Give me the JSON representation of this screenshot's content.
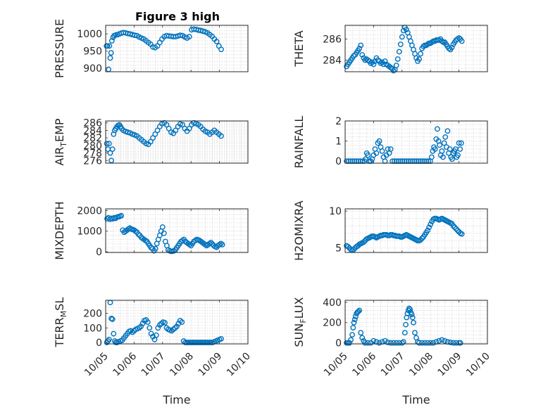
{
  "figure_title": "Figure 3 high",
  "marker_color": "#0072BD",
  "x_tick_labels": [
    "10/05",
    "10/06",
    "10/07",
    "10/08",
    "10/09",
    "10/10"
  ],
  "chart_data": [
    {
      "type": "scatter",
      "title": "Figure 3 high",
      "ylabel": "PRESSURE",
      "ylabel_sub": "",
      "xlabel": "",
      "xlim": [
        0,
        5
      ],
      "ylim": [
        890,
        1025
      ],
      "yticks": [
        900,
        950,
        1000
      ],
      "ytick_labels": [
        "900",
        "950",
        "1000"
      ],
      "grid": true,
      "x": [
        0.03,
        0.06,
        0.1,
        0.13,
        0.16,
        0.19,
        0.22,
        0.26,
        0.3,
        0.36,
        0.42,
        0.48,
        0.55,
        0.62,
        0.7,
        0.78,
        0.86,
        0.94,
        1.02,
        1.1,
        1.18,
        1.26,
        1.34,
        1.42,
        1.5,
        1.58,
        1.66,
        1.74,
        1.82,
        1.9,
        1.98,
        2.06,
        2.14,
        2.22,
        2.3,
        2.38,
        2.46,
        2.54,
        2.62,
        2.7,
        2.78,
        2.86,
        2.94,
        3.02,
        3.1,
        3.18,
        3.26,
        3.34,
        3.42,
        3.5,
        3.58,
        3.66,
        3.74,
        3.82,
        3.9,
        3.98,
        4.06
      ],
      "y": [
        965,
        965,
        897,
        965,
        930,
        945,
        980,
        990,
        995,
        997,
        998,
        1000,
        1002,
        1004,
        1003,
        1001,
        1000,
        998,
        996,
        995,
        991,
        988,
        985,
        980,
        975,
        970,
        962,
        960,
        965,
        975,
        985,
        992,
        995,
        994,
        993,
        992,
        992,
        994,
        996,
        995,
        991,
        988,
        992,
        1012,
        1014,
        1013,
        1011,
        1010,
        1008,
        1006,
        1003,
        998,
        993,
        985,
        978,
        965,
        955
      ]
    },
    {
      "type": "scatter",
      "title": "",
      "ylabel": "THETA",
      "ylabel_sub": "",
      "xlabel": "",
      "xlim": [
        0,
        5
      ],
      "ylim": [
        282.9,
        287.3
      ],
      "yticks": [
        284,
        286
      ],
      "ytick_labels": [
        "284",
        "286"
      ],
      "grid": true,
      "x": [
        0.05,
        0.1,
        0.15,
        0.2,
        0.25,
        0.3,
        0.35,
        0.4,
        0.45,
        0.5,
        0.55,
        0.6,
        0.65,
        0.7,
        0.75,
        0.8,
        0.85,
        0.9,
        0.95,
        1.0,
        1.05,
        1.1,
        1.15,
        1.2,
        1.25,
        1.3,
        1.35,
        1.4,
        1.45,
        1.5,
        1.55,
        1.6,
        1.65,
        1.7,
        1.75,
        1.8,
        1.85,
        1.9,
        1.95,
        2.0,
        2.05,
        2.1,
        2.15,
        2.2,
        2.25,
        2.3,
        2.35,
        2.4,
        2.45,
        2.5,
        2.55,
        2.6,
        2.65,
        2.7,
        2.75,
        2.8,
        2.85,
        2.9,
        2.95,
        3.0,
        3.05,
        3.1,
        3.15,
        3.2,
        3.25,
        3.3,
        3.35,
        3.4,
        3.45,
        3.5,
        3.55,
        3.6,
        3.65,
        3.7,
        3.75,
        3.8,
        3.85,
        3.9,
        3.95,
        4.0,
        4.05,
        4.1
      ],
      "y": [
        283.4,
        283.6,
        283.8,
        284.0,
        284.2,
        284.4,
        284.5,
        284.7,
        284.9,
        285.1,
        285.4,
        284.5,
        284.2,
        284.0,
        284.1,
        284.0,
        283.9,
        283.7,
        283.8,
        283.6,
        283.9,
        284.2,
        284.0,
        283.9,
        283.7,
        283.8,
        283.6,
        283.9,
        283.6,
        283.5,
        283.4,
        283.3,
        283.2,
        283.0,
        283.1,
        283.5,
        284.1,
        284.8,
        285.5,
        286.2,
        286.8,
        287.1,
        286.9,
        286.6,
        286.2,
        285.8,
        285.4,
        285.0,
        284.6,
        284.2,
        283.9,
        284.1,
        284.6,
        285.1,
        285.3,
        285.4,
        285.4,
        285.5,
        285.6,
        285.6,
        285.7,
        285.8,
        285.8,
        285.9,
        285.9,
        285.9,
        286.0,
        285.8,
        285.7,
        285.7,
        285.5,
        285.3,
        285.1,
        285.0,
        285.2,
        285.5,
        285.7,
        285.9,
        286.0,
        286.1,
        286.0,
        285.8
      ]
    },
    {
      "type": "scatter",
      "title": "",
      "ylabel": "AIR",
      "ylabel_sub": "T",
      "ylabel_post": "EMP",
      "xlabel": "",
      "xlim": [
        0,
        5
      ],
      "ylim": [
        275.3,
        286.5
      ],
      "yticks": [
        276,
        278,
        280,
        282,
        284,
        286
      ],
      "ytick_labels": [
        "276",
        "278",
        "280",
        "282",
        "284",
        "286"
      ],
      "grid": true,
      "x": [
        0.04,
        0.08,
        0.12,
        0.16,
        0.2,
        0.24,
        0.28,
        0.32,
        0.36,
        0.4,
        0.44,
        0.48,
        0.52,
        0.56,
        0.62,
        0.7,
        0.78,
        0.86,
        0.94,
        1.02,
        1.1,
        1.18,
        1.26,
        1.34,
        1.42,
        1.5,
        1.58,
        1.66,
        1.74,
        1.82,
        1.9,
        1.98,
        2.06,
        2.14,
        2.22,
        2.3,
        2.38,
        2.46,
        2.54,
        2.62,
        2.7,
        2.78,
        2.86,
        2.94,
        3.02,
        3.1,
        3.18,
        3.26,
        3.34,
        3.42,
        3.5,
        3.58,
        3.66,
        3.74,
        3.82,
        3.9,
        3.98,
        4.06
      ],
      "y": [
        280.5,
        279.0,
        280.5,
        278.0,
        276.0,
        279.0,
        283.0,
        284.0,
        284.5,
        285.0,
        285.3,
        285.5,
        285.0,
        284.5,
        284.0,
        283.7,
        283.5,
        283.3,
        283.0,
        282.8,
        282.5,
        282.0,
        281.5,
        281.0,
        280.5,
        280.3,
        281.0,
        282.0,
        283.0,
        284.0,
        285.0,
        285.8,
        286.0,
        285.5,
        284.5,
        283.5,
        283.2,
        284.0,
        285.0,
        285.7,
        285.5,
        284.5,
        283.8,
        284.5,
        285.5,
        286.0,
        285.8,
        285.5,
        285.0,
        284.3,
        283.8,
        283.5,
        283.0,
        283.5,
        284.0,
        283.5,
        283.0,
        282.5
      ]
    },
    {
      "type": "scatter",
      "title": "",
      "ylabel": "RAINFALL",
      "ylabel_sub": "",
      "xlabel": "",
      "xlim": [
        0,
        5
      ],
      "ylim": [
        -0.1,
        2
      ],
      "yticks": [
        0,
        1,
        2
      ],
      "ytick_labels": [
        "0",
        "1",
        "2"
      ],
      "grid": true,
      "x": [
        0.05,
        0.12,
        0.19,
        0.26,
        0.33,
        0.4,
        0.47,
        0.54,
        0.61,
        0.68,
        0.72,
        0.76,
        0.8,
        0.85,
        0.9,
        0.95,
        1.0,
        1.05,
        1.1,
        1.15,
        1.2,
        1.25,
        1.3,
        1.35,
        1.4,
        1.45,
        1.5,
        1.55,
        1.6,
        1.66,
        1.73,
        1.8,
        1.87,
        1.94,
        2.01,
        2.08,
        2.15,
        2.22,
        2.29,
        2.36,
        2.43,
        2.5,
        2.57,
        2.64,
        2.71,
        2.78,
        2.85,
        2.92,
        2.99,
        3.04,
        3.08,
        3.12,
        3.16,
        3.2,
        3.24,
        3.28,
        3.32,
        3.36,
        3.4,
        3.44,
        3.48,
        3.52,
        3.56,
        3.6,
        3.64,
        3.68,
        3.72,
        3.76,
        3.8,
        3.84,
        3.88,
        3.92,
        3.96,
        4.0,
        4.04,
        4.08
      ],
      "y": [
        0,
        0,
        0,
        0,
        0,
        0,
        0,
        0,
        0,
        0,
        0.1,
        0.4,
        0.3,
        0,
        0,
        0.1,
        0.3,
        0.6,
        0.4,
        0.9,
        1.0,
        0.7,
        0.5,
        0.2,
        0,
        0.3,
        0.6,
        0.4,
        0.6,
        0,
        0,
        0,
        0,
        0,
        0,
        0,
        0,
        0,
        0,
        0,
        0,
        0,
        0,
        0,
        0,
        0,
        0,
        0,
        0,
        0.2,
        0.5,
        0.7,
        0.6,
        1.1,
        1.6,
        1.0,
        0.8,
        0.3,
        0.5,
        0.2,
        0.9,
        1.2,
        0.7,
        1.5,
        0.4,
        0.6,
        0.2,
        0.1,
        0.4,
        0.5,
        0.6,
        0.2,
        0.3,
        0.9,
        0.6,
        0.9
      ]
    },
    {
      "type": "scatter",
      "title": "",
      "ylabel": "MIXDEPTH",
      "ylabel_sub": "",
      "xlabel": "",
      "xlim": [
        0,
        5
      ],
      "ylim": [
        -30,
        2080
      ],
      "yticks": [
        0,
        1000,
        2000
      ],
      "ytick_labels": [
        "0",
        "1000",
        "2000"
      ],
      "grid": true,
      "x": [
        0.05,
        0.1,
        0.15,
        0.2,
        0.25,
        0.3,
        0.35,
        0.4,
        0.45,
        0.5,
        0.55,
        0.6,
        0.65,
        0.7,
        0.75,
        0.8,
        0.85,
        0.9,
        0.95,
        1.0,
        1.05,
        1.1,
        1.15,
        1.2,
        1.25,
        1.3,
        1.35,
        1.4,
        1.45,
        1.5,
        1.55,
        1.6,
        1.65,
        1.7,
        1.75,
        1.8,
        1.85,
        1.9,
        1.95,
        2.0,
        2.05,
        2.1,
        2.15,
        2.2,
        2.25,
        2.3,
        2.35,
        2.4,
        2.45,
        2.5,
        2.55,
        2.6,
        2.65,
        2.7,
        2.75,
        2.8,
        2.85,
        2.9,
        2.95,
        3.0,
        3.05,
        3.1,
        3.15,
        3.2,
        3.25,
        3.3,
        3.35,
        3.4,
        3.45,
        3.5,
        3.55,
        3.6,
        3.65,
        3.7,
        3.75,
        3.8,
        3.85,
        3.9,
        3.95,
        4.0,
        4.05,
        4.1
      ],
      "y": [
        1600,
        1650,
        1580,
        1620,
        1600,
        1650,
        1620,
        1680,
        1700,
        1720,
        1750,
        1050,
        950,
        1000,
        1050,
        1100,
        1150,
        1100,
        1080,
        1050,
        1000,
        950,
        850,
        800,
        700,
        650,
        600,
        550,
        500,
        400,
        300,
        200,
        150,
        50,
        150,
        400,
        600,
        800,
        1000,
        1200,
        900,
        500,
        300,
        100,
        50,
        20,
        30,
        50,
        100,
        200,
        300,
        400,
        500,
        550,
        600,
        500,
        450,
        400,
        350,
        300,
        400,
        500,
        550,
        600,
        580,
        550,
        500,
        450,
        400,
        350,
        300,
        350,
        400,
        450,
        380,
        300,
        250,
        220,
        300,
        350,
        400,
        350
      ]
    },
    {
      "type": "scatter",
      "title": "",
      "ylabel": "H2OMIXRA",
      "ylabel_sub": "",
      "xlabel": "",
      "xlim": [
        0,
        5
      ],
      "ylim": [
        4.4,
        10.3
      ],
      "yticks": [
        5,
        10
      ],
      "ytick_labels": [
        "5",
        "10"
      ],
      "grid": true,
      "x": [
        0.05,
        0.1,
        0.15,
        0.2,
        0.25,
        0.3,
        0.35,
        0.4,
        0.45,
        0.5,
        0.55,
        0.6,
        0.65,
        0.7,
        0.75,
        0.8,
        0.85,
        0.9,
        0.95,
        1.0,
        1.05,
        1.1,
        1.15,
        1.2,
        1.25,
        1.3,
        1.35,
        1.4,
        1.45,
        1.5,
        1.55,
        1.6,
        1.65,
        1.7,
        1.75,
        1.8,
        1.85,
        1.9,
        1.95,
        2.0,
        2.05,
        2.1,
        2.15,
        2.2,
        2.25,
        2.3,
        2.35,
        2.4,
        2.45,
        2.5,
        2.55,
        2.6,
        2.65,
        2.7,
        2.75,
        2.8,
        2.85,
        2.9,
        2.95,
        3.0,
        3.05,
        3.1,
        3.15,
        3.2,
        3.25,
        3.3,
        3.35,
        3.4,
        3.45,
        3.5,
        3.55,
        3.6,
        3.65,
        3.7,
        3.75,
        3.8,
        3.85,
        3.9,
        3.95,
        4.0,
        4.05,
        4.1
      ],
      "y": [
        5.3,
        5.2,
        5.0,
        4.8,
        4.7,
        4.8,
        5.0,
        5.2,
        5.3,
        5.5,
        5.6,
        5.7,
        5.8,
        6.0,
        6.2,
        6.3,
        6.4,
        6.5,
        6.6,
        6.6,
        6.5,
        6.4,
        6.5,
        6.6,
        6.7,
        6.7,
        6.8,
        6.8,
        6.8,
        6.7,
        6.7,
        6.8,
        6.8,
        6.7,
        6.7,
        6.6,
        6.6,
        6.6,
        6.5,
        6.5,
        6.6,
        6.7,
        6.8,
        6.7,
        6.6,
        6.5,
        6.4,
        6.3,
        6.2,
        6.1,
        6.0,
        6.0,
        6.1,
        6.3,
        6.5,
        6.8,
        7.1,
        7.4,
        7.8,
        8.2,
        8.6,
        8.9,
        9.0,
        9.0,
        8.9,
        8.8,
        8.9,
        9.0,
        8.9,
        8.8,
        8.7,
        8.6,
        8.5,
        8.4,
        8.3,
        8.0,
        7.8,
        7.6,
        7.4,
        7.2,
        7.0,
        6.9
      ]
    },
    {
      "type": "scatter",
      "title": "",
      "ylabel": "TERR",
      "ylabel_sub": "M",
      "ylabel_post": "SL",
      "xlabel": "Time",
      "xlim": [
        0,
        5
      ],
      "ylim": [
        -10,
        290
      ],
      "yticks": [
        0,
        100,
        200
      ],
      "ytick_labels": [
        "0",
        "100",
        "200"
      ],
      "grid": true,
      "x": [
        0.04,
        0.08,
        0.12,
        0.16,
        0.2,
        0.24,
        0.28,
        0.32,
        0.36,
        0.4,
        0.46,
        0.52,
        0.58,
        0.64,
        0.7,
        0.76,
        0.82,
        0.88,
        0.94,
        1.0,
        1.06,
        1.12,
        1.18,
        1.24,
        1.3,
        1.36,
        1.42,
        1.48,
        1.54,
        1.6,
        1.66,
        1.72,
        1.78,
        1.84,
        1.9,
        1.96,
        2.02,
        2.08,
        2.14,
        2.2,
        2.26,
        2.32,
        2.38,
        2.44,
        2.5,
        2.56,
        2.62,
        2.68,
        2.74,
        2.8,
        2.86,
        2.92,
        2.98,
        3.04,
        3.1,
        3.16,
        3.22,
        3.28,
        3.34,
        3.4,
        3.46,
        3.52,
        3.58,
        3.64,
        3.7,
        3.76,
        3.82,
        3.88,
        3.94,
        4.0,
        4.06
      ],
      "y": [
        0,
        10,
        20,
        275,
        165,
        160,
        60,
        10,
        0,
        0,
        5,
        10,
        15,
        30,
        45,
        60,
        75,
        80,
        70,
        80,
        90,
        95,
        100,
        110,
        130,
        150,
        155,
        140,
        100,
        60,
        40,
        20,
        50,
        100,
        120,
        130,
        140,
        135,
        100,
        90,
        85,
        80,
        90,
        100,
        110,
        130,
        150,
        140,
        10,
        0,
        0,
        0,
        0,
        0,
        0,
        0,
        0,
        0,
        0,
        0,
        0,
        0,
        0,
        0,
        0,
        0,
        5,
        10,
        15,
        20,
        25
      ]
    },
    {
      "type": "scatter",
      "title": "",
      "ylabel": "SUN",
      "ylabel_sub": "F",
      "ylabel_post": "LUX",
      "xlabel": "Time",
      "xlim": [
        0,
        5
      ],
      "ylim": [
        -10,
        420
      ],
      "yticks": [
        0,
        200,
        400
      ],
      "ytick_labels": [
        "0",
        "200",
        "400"
      ],
      "grid": true,
      "x": [
        0.05,
        0.1,
        0.15,
        0.2,
        0.25,
        0.28,
        0.31,
        0.34,
        0.37,
        0.4,
        0.43,
        0.46,
        0.5,
        0.55,
        0.6,
        0.65,
        0.7,
        0.8,
        0.9,
        1.0,
        1.1,
        1.2,
        1.3,
        1.4,
        1.5,
        1.6,
        1.7,
        1.8,
        1.9,
        2.0,
        2.05,
        2.1,
        2.13,
        2.16,
        2.19,
        2.22,
        2.25,
        2.28,
        2.31,
        2.34,
        2.37,
        2.4,
        2.45,
        2.5,
        2.55,
        2.6,
        2.7,
        2.8,
        2.9,
        3.0,
        3.1,
        3.2,
        3.3,
        3.4,
        3.5,
        3.6,
        3.7,
        3.8,
        3.9,
        4.0,
        4.05
      ],
      "y": [
        0,
        0,
        0,
        30,
        80,
        150,
        200,
        230,
        260,
        290,
        300,
        310,
        320,
        100,
        50,
        20,
        0,
        0,
        0,
        20,
        10,
        0,
        10,
        20,
        5,
        0,
        0,
        0,
        0,
        0,
        10,
        100,
        180,
        250,
        290,
        320,
        340,
        330,
        300,
        280,
        250,
        200,
        100,
        50,
        10,
        0,
        0,
        0,
        0,
        0,
        0,
        10,
        20,
        30,
        20,
        10,
        5,
        0,
        0,
        0,
        0
      ]
    }
  ]
}
